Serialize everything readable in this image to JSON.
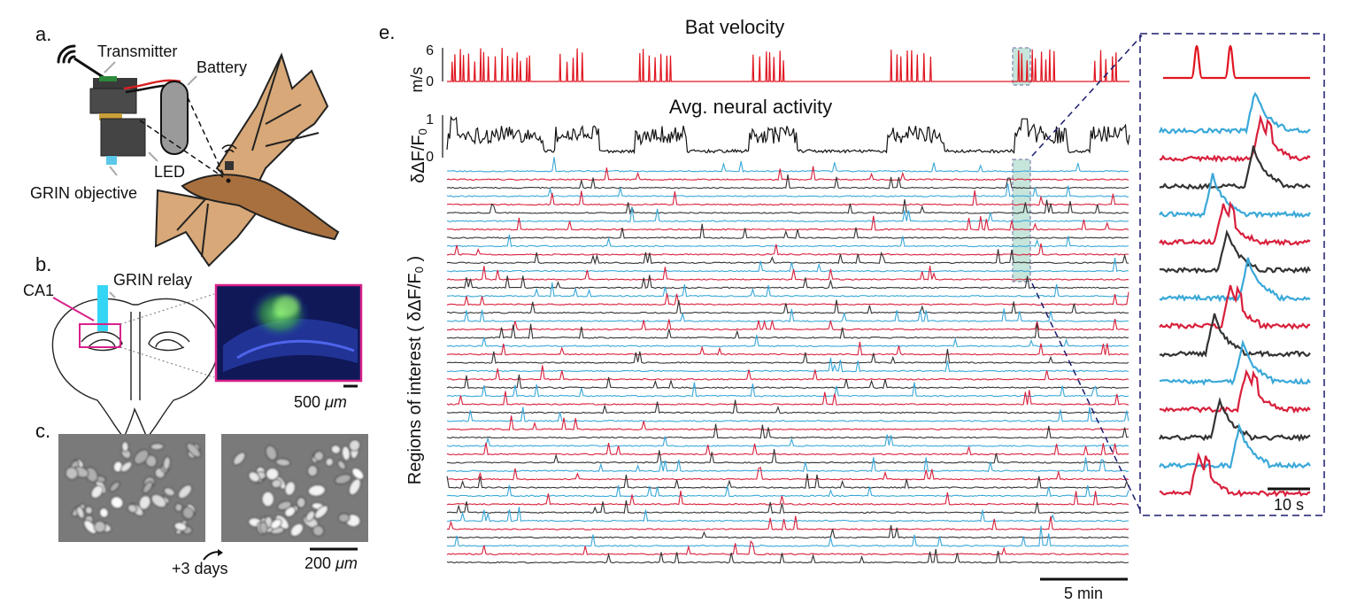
{
  "colors": {
    "velocity": "#e0141f",
    "trace_blue": "#3aa8d8",
    "trace_red": "#d8203c",
    "trace_black": "#333333",
    "highlight": "#a8d8c8",
    "zoom_border": "#1c1c6e",
    "bat_body": "#a8703e",
    "bat_wing": "#d8a878",
    "grin_cyan": "#35d5f5",
    "ca1_magenta": "#d8228a"
  },
  "panel_a": {
    "label": "a.",
    "transmitter": "Transmitter",
    "battery": "Battery",
    "led": "LED",
    "grin_objective": "GRIN objective"
  },
  "panel_b": {
    "label": "b.",
    "ca1": "CA1",
    "grin_relay": "GRIN relay",
    "scale_value": "500",
    "scale_unit": "μm"
  },
  "panel_c": {
    "label": "c.",
    "interval": "+3 days",
    "scale_value": "200",
    "scale_unit": "μm"
  },
  "panel_e": {
    "label": "e.",
    "velocity_title": "Bat velocity",
    "velocity_unit": "m/s",
    "velocity_ticks": [
      "6",
      "0"
    ],
    "neural_title": "Avg. neural activity",
    "neural_ylabel": "δΔF/F",
    "neural_ylabel_sub": "0",
    "neural_ticks": [
      "1",
      "0"
    ],
    "roi_ylabel": "Regions of interest ( δΔF/F",
    "roi_ylabel_sub": "0",
    "roi_ylabel_end": ")",
    "scale_main": "5 min",
    "scale_zoom": "10 s"
  },
  "chart_data": {
    "type": "line",
    "y_velocity_range": [
      0,
      6
    ],
    "y_neural_range": [
      0,
      1
    ],
    "trace_count": 48,
    "trace_color_cycle": [
      "blue",
      "red",
      "black"
    ]
  }
}
